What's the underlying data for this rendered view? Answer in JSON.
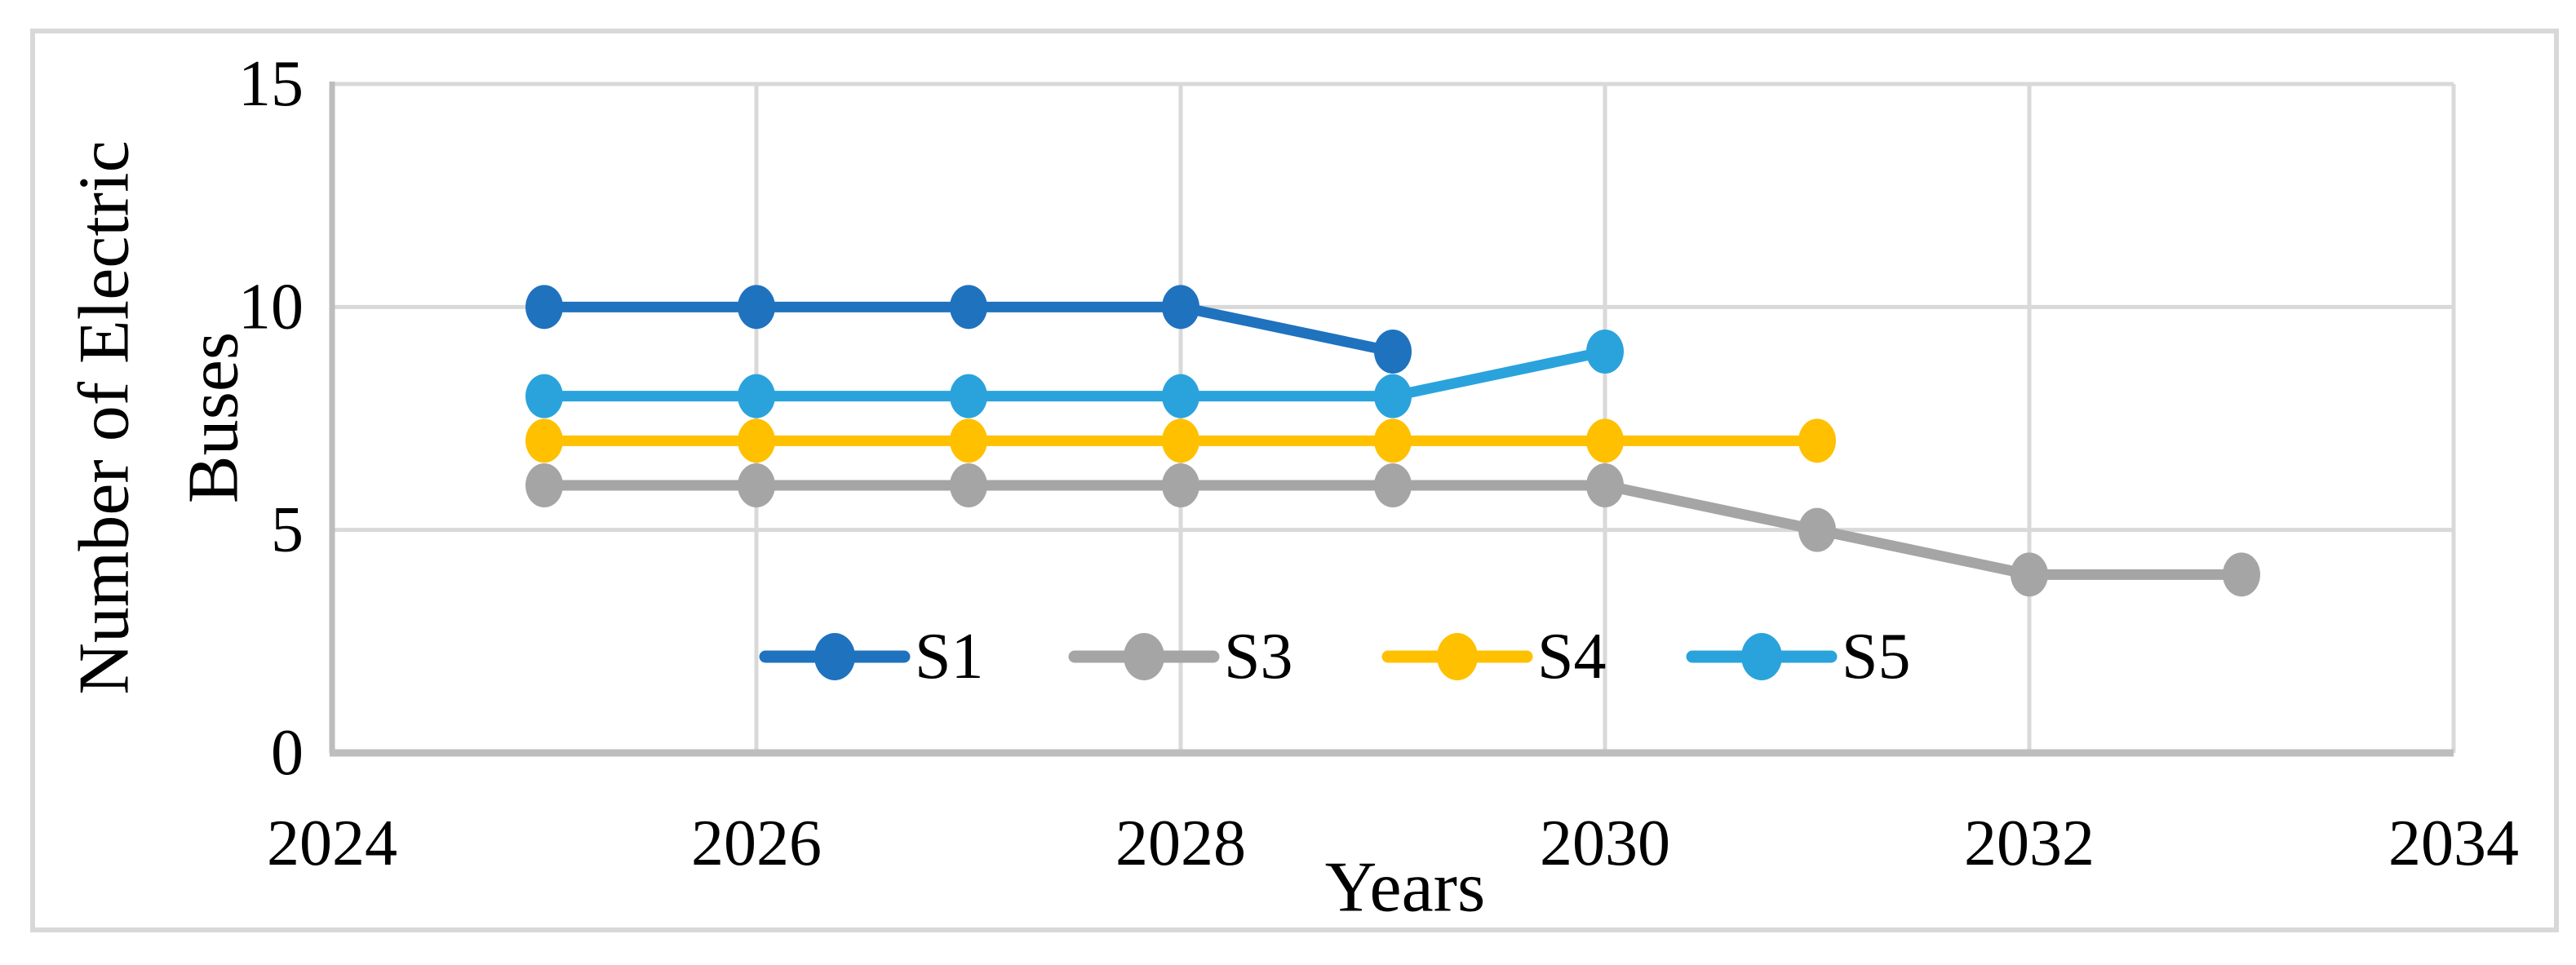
{
  "figure": {
    "background": "#FFFFFF",
    "border_color": "#D8D8D8",
    "gridline_color": "#D9D9D9",
    "axis_line_color": "#BDBDBD",
    "text_color": "#000000"
  },
  "chart_data": {
    "type": "line",
    "title": "",
    "xlabel": "Years",
    "ylabel": "Number of Electric Buses",
    "ylabel_lines": [
      "Number of Electric",
      "Buses"
    ],
    "xlim": [
      2024,
      2034
    ],
    "ylim": [
      0,
      15
    ],
    "xticks": [
      2024,
      2026,
      2028,
      2030,
      2032,
      2034
    ],
    "yticks": [
      0,
      5,
      10,
      15
    ],
    "grid": true,
    "legend_position": "inside-bottom-center",
    "legend_entries": [
      "S1",
      "S3",
      "S4",
      "S5"
    ],
    "series": [
      {
        "name": "S1",
        "color": "#1F72BE",
        "points": [
          [
            2025,
            10
          ],
          [
            2026,
            10
          ],
          [
            2027,
            10
          ],
          [
            2028,
            10
          ],
          [
            2029,
            9
          ]
        ]
      },
      {
        "name": "S3",
        "color": "#A5A5A5",
        "points": [
          [
            2025,
            6
          ],
          [
            2026,
            6
          ],
          [
            2027,
            6
          ],
          [
            2028,
            6
          ],
          [
            2029,
            6
          ],
          [
            2030,
            6
          ],
          [
            2031,
            5
          ],
          [
            2032,
            4
          ],
          [
            2033,
            4
          ]
        ]
      },
      {
        "name": "S4",
        "color": "#FFC000",
        "points": [
          [
            2025,
            7
          ],
          [
            2026,
            7
          ],
          [
            2027,
            7
          ],
          [
            2028,
            7
          ],
          [
            2029,
            7
          ],
          [
            2030,
            7
          ],
          [
            2031,
            7
          ]
        ]
      },
      {
        "name": "S5",
        "color": "#2AA3DC",
        "points": [
          [
            2025,
            8
          ],
          [
            2026,
            8
          ],
          [
            2027,
            8
          ],
          [
            2028,
            8
          ],
          [
            2029,
            8
          ],
          [
            2030,
            9
          ]
        ]
      }
    ]
  }
}
